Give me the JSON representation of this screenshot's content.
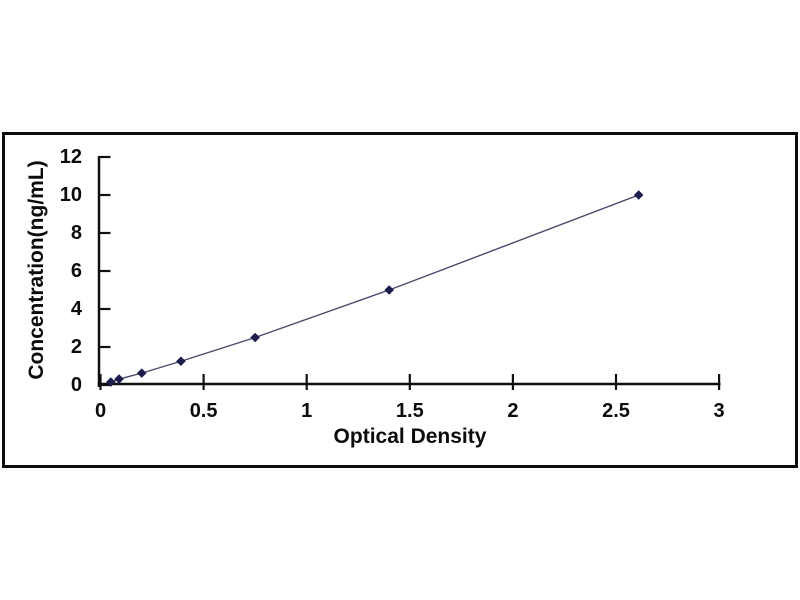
{
  "page": {
    "background": "#ffffff"
  },
  "frame": {
    "border_color": "#0d0d0d",
    "background": "#ffffff"
  },
  "chart_data": {
    "type": "line",
    "title": "",
    "xlabel": "Optical Density",
    "ylabel": "Concentration(ng/mL)",
    "x_ticks": [
      "0",
      "0.5",
      "1",
      "1.5",
      "2",
      "2.5",
      "3"
    ],
    "y_ticks": [
      "0",
      "2",
      "4",
      "6",
      "8",
      "10",
      "12"
    ],
    "xlim": [
      0,
      3
    ],
    "ylim": [
      0,
      12
    ],
    "grid": false,
    "legend_position": "none",
    "marker_shape": "diamond",
    "colors": {
      "line": "#4a4a6d",
      "marker": "#1d1d4d",
      "axis": "#101010",
      "text": "#0c0c0c"
    },
    "x": [
      0.05,
      0.09,
      0.2,
      0.39,
      0.75,
      1.4,
      2.61
    ],
    "y": [
      0.156,
      0.313,
      0.625,
      1.25,
      2.5,
      5,
      10
    ]
  }
}
